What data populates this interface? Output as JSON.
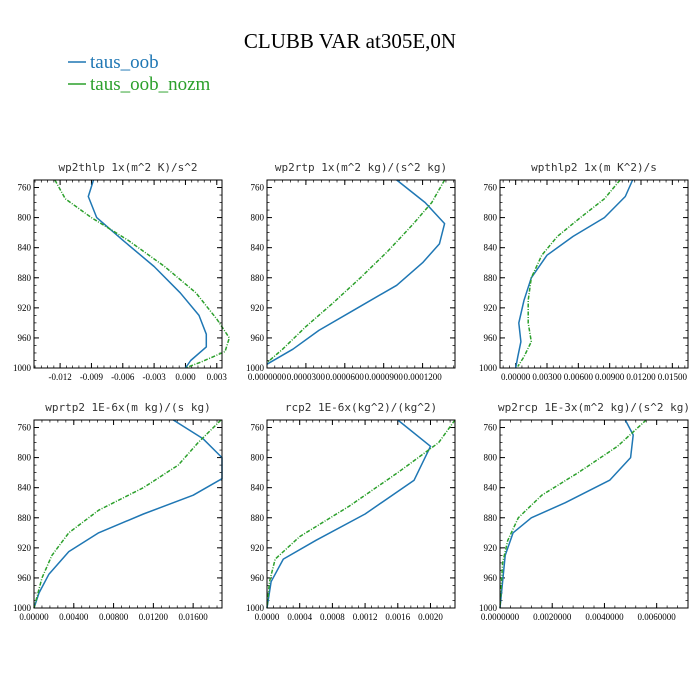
{
  "title": "CLUBB VAR at305E,0N",
  "colors": {
    "taus_oob": "#1f77b4",
    "taus_oob_nozm": "#2ca02c"
  },
  "legend": [
    {
      "name": "taus_oob",
      "color": "#1f77b4",
      "style": "solid"
    },
    {
      "name": "taus_oob_nozm",
      "color": "#2ca02c",
      "style": "dashed"
    }
  ],
  "chart_data": [
    {
      "type": "line",
      "title": "wp2thlp  1x(m^2 K)/s^2",
      "xlim": [
        -0.0145,
        0.0035
      ],
      "ylim": [
        1000,
        750
      ],
      "y_ticks": [
        760,
        800,
        840,
        880,
        920,
        960,
        1000
      ],
      "x_ticks": [
        -0.012,
        -0.009,
        -0.006,
        -0.003,
        0.0,
        0.003
      ],
      "x_tick_labels": [
        "-0.012",
        "-0.009",
        "-0.006",
        "-0.003",
        "0.000",
        "0.003"
      ],
      "series": [
        {
          "name": "taus_oob",
          "points": [
            [
              -0.0088,
              750
            ],
            [
              -0.0093,
              772
            ],
            [
              -0.0085,
              800
            ],
            [
              -0.006,
              830
            ],
            [
              -0.003,
              865
            ],
            [
              -0.0005,
              900
            ],
            [
              0.0013,
              930
            ],
            [
              0.002,
              955
            ],
            [
              0.002,
              972
            ],
            [
              0.0005,
              990
            ],
            [
              0.0,
              1000
            ]
          ]
        },
        {
          "name": "taus_oob_nozm",
          "points": [
            [
              -0.0125,
              750
            ],
            [
              -0.0115,
              775
            ],
            [
              -0.009,
              800
            ],
            [
              -0.0055,
              830
            ],
            [
              -0.002,
              865
            ],
            [
              0.001,
              900
            ],
            [
              0.003,
              935
            ],
            [
              0.0042,
              960
            ],
            [
              0.0038,
              978
            ],
            [
              0.0015,
              992
            ],
            [
              0.0,
              1000
            ]
          ]
        }
      ]
    },
    {
      "type": "line",
      "title": "wp2rtp  1x(m^2 kg)/(s^2 kg)",
      "xlim": [
        0.0,
        0.000145
      ],
      "ylim": [
        1000,
        750
      ],
      "y_ticks": [
        760,
        800,
        840,
        880,
        920,
        960,
        1000
      ],
      "x_ticks": [
        0.0,
        3e-05,
        6e-05,
        9e-05,
        0.00012
      ],
      "x_tick_labels": [
        "0.0000000",
        "0.0000300",
        "0.0000600",
        "0.0000900",
        "0.0001200"
      ],
      "series": [
        {
          "name": "taus_oob",
          "points": [
            [
              0.0001,
              750
            ],
            [
              0.000122,
              780
            ],
            [
              0.000137,
              808
            ],
            [
              0.000133,
              835
            ],
            [
              0.00012,
              860
            ],
            [
              0.0001,
              890
            ],
            [
              7e-05,
              920
            ],
            [
              4e-05,
              950
            ],
            [
              2e-05,
              975
            ],
            [
              0.0,
              995
            ]
          ]
        },
        {
          "name": "taus_oob_nozm",
          "points": [
            [
              0.000137,
              750
            ],
            [
              0.000127,
              780
            ],
            [
              0.000112,
              810
            ],
            [
              9.3e-05,
              845
            ],
            [
              7.2e-05,
              880
            ],
            [
              5e-05,
              915
            ],
            [
              3e-05,
              945
            ],
            [
              1.2e-05,
              975
            ],
            [
              0.0,
              993
            ]
          ]
        }
      ]
    },
    {
      "type": "line",
      "title": "wpthlp2  1x(m K^2)/s",
      "xlim": [
        -0.0015,
        0.0165
      ],
      "ylim": [
        1000,
        750
      ],
      "y_ticks": [
        760,
        800,
        840,
        880,
        920,
        960,
        1000
      ],
      "x_ticks": [
        0.0,
        0.003,
        0.006,
        0.009,
        0.012,
        0.015
      ],
      "x_tick_labels": [
        "0.00000",
        "0.00300",
        "0.00600",
        "0.00900",
        "0.01200",
        "0.01500"
      ],
      "series": [
        {
          "name": "taus_oob",
          "points": [
            [
              0.0112,
              750
            ],
            [
              0.0105,
              772
            ],
            [
              0.0085,
              800
            ],
            [
              0.0055,
              825
            ],
            [
              0.003,
              850
            ],
            [
              0.0015,
              880
            ],
            [
              0.0008,
              910
            ],
            [
              0.0003,
              940
            ],
            [
              0.0005,
              965
            ],
            [
              0.0002,
              985
            ],
            [
              0.0,
              1000
            ]
          ]
        },
        {
          "name": "taus_oob_nozm",
          "points": [
            [
              0.01,
              750
            ],
            [
              0.0085,
              775
            ],
            [
              0.0062,
              800
            ],
            [
              0.004,
              825
            ],
            [
              0.0025,
              850
            ],
            [
              0.0015,
              880
            ],
            [
              0.0012,
              910
            ],
            [
              0.0012,
              940
            ],
            [
              0.0015,
              965
            ],
            [
              0.0008,
              985
            ],
            [
              0.0002,
              998
            ]
          ]
        }
      ]
    },
    {
      "type": "line",
      "title": "wprtp2  1E-6x(m kg)/(s kg)",
      "xlim": [
        0.0,
        0.0189
      ],
      "ylim": [
        1000,
        750
      ],
      "y_ticks": [
        760,
        800,
        840,
        880,
        920,
        960,
        1000
      ],
      "x_ticks": [
        0.0,
        0.004,
        0.008,
        0.012,
        0.016
      ],
      "x_tick_labels": [
        "0.00000",
        "0.00400",
        "0.00800",
        "0.01200",
        "0.01600"
      ],
      "series": [
        {
          "name": "taus_oob",
          "points": [
            [
              0.014,
              750
            ],
            [
              0.017,
              775
            ],
            [
              0.0189,
              800
            ],
            [
              0.0189,
              828
            ],
            [
              0.016,
              850
            ],
            [
              0.011,
              875
            ],
            [
              0.0065,
              900
            ],
            [
              0.0035,
              925
            ],
            [
              0.0015,
              955
            ],
            [
              0.0005,
              980
            ],
            [
              0.0,
              1000
            ]
          ]
        },
        {
          "name": "taus_oob_nozm",
          "points": [
            [
              0.0188,
              750
            ],
            [
              0.0165,
              780
            ],
            [
              0.0145,
              810
            ],
            [
              0.011,
              840
            ],
            [
              0.0065,
              870
            ],
            [
              0.0035,
              900
            ],
            [
              0.0018,
              930
            ],
            [
              0.0008,
              960
            ],
            [
              0.0003,
              985
            ],
            [
              0.0,
              1000
            ]
          ]
        }
      ]
    },
    {
      "type": "line",
      "title": "rcp2  1E-6x(kg^2)/(kg^2)",
      "xlim": [
        0.0,
        0.0023
      ],
      "ylim": [
        1000,
        750
      ],
      "y_ticks": [
        760,
        800,
        840,
        880,
        920,
        960,
        1000
      ],
      "x_ticks": [
        0.0,
        0.0004,
        0.0008,
        0.0012,
        0.0016,
        0.002
      ],
      "x_tick_labels": [
        "0.0000",
        "0.0004",
        "0.0008",
        "0.0012",
        "0.0016",
        "0.0020"
      ],
      "series": [
        {
          "name": "taus_oob",
          "points": [
            [
              0.0016,
              750
            ],
            [
              0.002,
              785
            ],
            [
              0.0018,
              830
            ],
            [
              0.0012,
              875
            ],
            [
              0.0006,
              910
            ],
            [
              0.0002,
              935
            ],
            [
              5e-05,
              965
            ],
            [
              0.0,
              1000
            ]
          ]
        },
        {
          "name": "taus_oob_nozm",
          "points": [
            [
              0.0023,
              750
            ],
            [
              0.0021,
              780
            ],
            [
              0.0016,
              820
            ],
            [
              0.001,
              865
            ],
            [
              0.0004,
              905
            ],
            [
              0.0001,
              935
            ],
            [
              3e-05,
              965
            ],
            [
              0.0,
              1000
            ]
          ]
        }
      ]
    },
    {
      "type": "line",
      "title": "wp2rcp  1E-3x(m^2 kg)/(s^2 kg)",
      "xlim": [
        0.0,
        0.0072
      ],
      "ylim": [
        1000,
        750
      ],
      "y_ticks": [
        760,
        800,
        840,
        880,
        920,
        960,
        1000
      ],
      "x_ticks": [
        0.0,
        0.002,
        0.004,
        0.006
      ],
      "x_tick_labels": [
        "0.0000000",
        "0.0020000",
        "0.0040000",
        "0.0060000"
      ],
      "series": [
        {
          "name": "taus_oob",
          "points": [
            [
              0.0048,
              750
            ],
            [
              0.0051,
              770
            ],
            [
              0.005,
              800
            ],
            [
              0.0042,
              830
            ],
            [
              0.0025,
              860
            ],
            [
              0.0012,
              880
            ],
            [
              0.0005,
              900
            ],
            [
              0.0002,
              930
            ],
            [
              0.0,
              1000
            ]
          ]
        },
        {
          "name": "taus_oob_nozm",
          "points": [
            [
              0.0056,
              750
            ],
            [
              0.0045,
              785
            ],
            [
              0.003,
              820
            ],
            [
              0.0016,
              850
            ],
            [
              0.0007,
              880
            ],
            [
              0.0003,
              910
            ],
            [
              0.0001,
              940
            ],
            [
              0.0,
              1000
            ]
          ]
        }
      ]
    }
  ]
}
